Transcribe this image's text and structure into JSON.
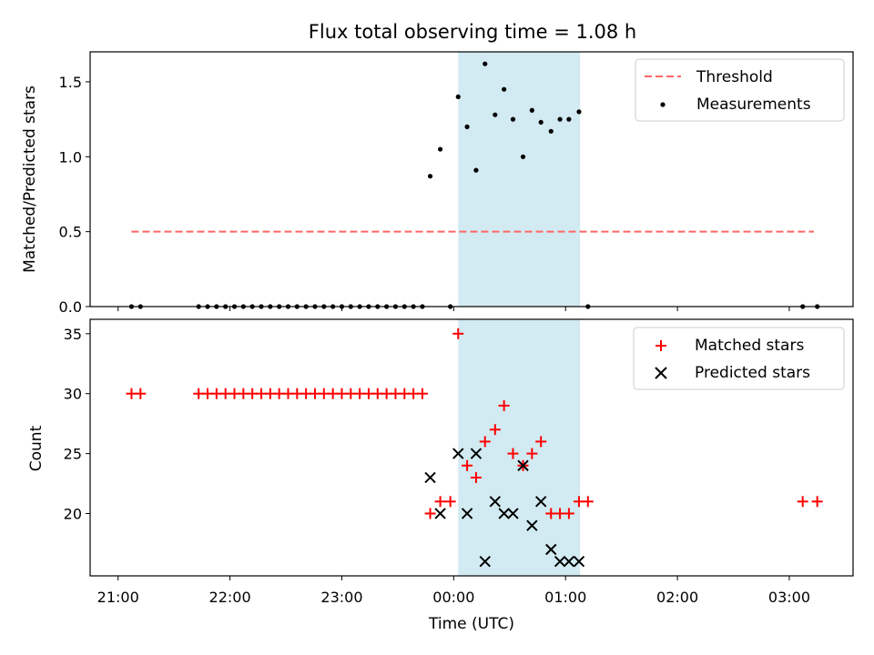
{
  "chart_data": [
    {
      "type": "scatter",
      "title": "Flux total observing time = 1.08 h",
      "ylabel": "Matched/Predicted stars",
      "xlabel": "",
      "xlim_hours": [
        20.75,
        27.57
      ],
      "ylim": [
        0,
        1.7
      ],
      "yticks": [
        0.0,
        0.5,
        1.0,
        1.5
      ],
      "ytick_labels": [
        "0.0",
        "0.5",
        "1.0",
        "1.5"
      ],
      "shaded_interval_hours": [
        24.04,
        25.13
      ],
      "shaded_color": "#add8e6",
      "threshold": {
        "name": "Threshold",
        "y": 0.5,
        "x": [
          21.12,
          27.22
        ],
        "color": "#ff6666"
      },
      "series": [
        {
          "name": "Measurements",
          "color": "#000000",
          "points": [
            [
              21.12,
              0
            ],
            [
              21.2,
              0
            ],
            [
              21.72,
              0
            ],
            [
              21.8,
              0
            ],
            [
              21.88,
              0
            ],
            [
              21.96,
              0
            ],
            [
              22.04,
              0
            ],
            [
              22.12,
              0
            ],
            [
              22.2,
              0
            ],
            [
              22.28,
              0
            ],
            [
              22.36,
              0
            ],
            [
              22.44,
              0
            ],
            [
              22.52,
              0
            ],
            [
              22.6,
              0
            ],
            [
              22.68,
              0
            ],
            [
              22.76,
              0
            ],
            [
              22.84,
              0
            ],
            [
              22.92,
              0
            ],
            [
              23.0,
              0
            ],
            [
              23.08,
              0
            ],
            [
              23.16,
              0
            ],
            [
              23.24,
              0
            ],
            [
              23.32,
              0
            ],
            [
              23.4,
              0
            ],
            [
              23.48,
              0
            ],
            [
              23.56,
              0
            ],
            [
              23.64,
              0
            ],
            [
              23.72,
              0
            ],
            [
              23.79,
              0.87
            ],
            [
              23.88,
              1.05
            ],
            [
              23.97,
              0
            ],
            [
              24.04,
              1.4
            ],
            [
              24.12,
              1.2
            ],
            [
              24.2,
              0.91
            ],
            [
              24.28,
              1.62
            ],
            [
              24.37,
              1.28
            ],
            [
              24.45,
              1.45
            ],
            [
              24.53,
              1.25
            ],
            [
              24.62,
              1.0
            ],
            [
              24.7,
              1.31
            ],
            [
              24.78,
              1.23
            ],
            [
              24.87,
              1.17
            ],
            [
              24.95,
              1.25
            ],
            [
              25.03,
              1.25
            ],
            [
              25.12,
              1.3
            ],
            [
              25.2,
              0
            ],
            [
              27.12,
              0
            ],
            [
              27.25,
              0
            ]
          ]
        }
      ]
    },
    {
      "type": "scatter",
      "title": "",
      "xlabel": "Time (UTC)",
      "ylabel": "Count",
      "xlim_hours": [
        20.75,
        27.57
      ],
      "ylim": [
        14.8,
        36.2
      ],
      "yticks": [
        20,
        25,
        30,
        35
      ],
      "ytick_labels": [
        "20",
        "25",
        "30",
        "35"
      ],
      "xticks_hours": [
        21,
        22,
        23,
        24,
        25,
        26,
        27
      ],
      "xtick_labels": [
        "21:00",
        "22:00",
        "23:00",
        "00:00",
        "01:00",
        "02:00",
        "03:00"
      ],
      "shaded_interval_hours": [
        24.04,
        25.13
      ],
      "shaded_color": "#add8e6",
      "series": [
        {
          "name": "Matched stars",
          "marker": "+",
          "color": "#ff0000",
          "points": [
            [
              21.12,
              30
            ],
            [
              21.2,
              30
            ],
            [
              21.72,
              30
            ],
            [
              21.8,
              30
            ],
            [
              21.88,
              30
            ],
            [
              21.96,
              30
            ],
            [
              22.04,
              30
            ],
            [
              22.12,
              30
            ],
            [
              22.2,
              30
            ],
            [
              22.28,
              30
            ],
            [
              22.36,
              30
            ],
            [
              22.44,
              30
            ],
            [
              22.52,
              30
            ],
            [
              22.6,
              30
            ],
            [
              22.68,
              30
            ],
            [
              22.76,
              30
            ],
            [
              22.84,
              30
            ],
            [
              22.92,
              30
            ],
            [
              23.0,
              30
            ],
            [
              23.08,
              30
            ],
            [
              23.16,
              30
            ],
            [
              23.24,
              30
            ],
            [
              23.32,
              30
            ],
            [
              23.4,
              30
            ],
            [
              23.48,
              30
            ],
            [
              23.56,
              30
            ],
            [
              23.64,
              30
            ],
            [
              23.72,
              30
            ],
            [
              23.79,
              20
            ],
            [
              23.88,
              21
            ],
            [
              23.97,
              21
            ],
            [
              24.04,
              35
            ],
            [
              24.12,
              24
            ],
            [
              24.2,
              23
            ],
            [
              24.28,
              26
            ],
            [
              24.37,
              27
            ],
            [
              24.45,
              29
            ],
            [
              24.53,
              25
            ],
            [
              24.62,
              24
            ],
            [
              24.7,
              25
            ],
            [
              24.78,
              26
            ],
            [
              24.87,
              20
            ],
            [
              24.95,
              20
            ],
            [
              25.03,
              20
            ],
            [
              25.12,
              21
            ],
            [
              25.2,
              21
            ],
            [
              27.12,
              21
            ],
            [
              27.25,
              21
            ]
          ]
        },
        {
          "name": "Predicted stars",
          "marker": "x",
          "color": "#000000",
          "points": [
            [
              23.79,
              23
            ],
            [
              23.88,
              20
            ],
            [
              24.04,
              25
            ],
            [
              24.12,
              20
            ],
            [
              24.2,
              25
            ],
            [
              24.28,
              16
            ],
            [
              24.37,
              21
            ],
            [
              24.45,
              20
            ],
            [
              24.53,
              20
            ],
            [
              24.62,
              24
            ],
            [
              24.7,
              19
            ],
            [
              24.78,
              21
            ],
            [
              24.87,
              17
            ],
            [
              24.95,
              16
            ],
            [
              25.03,
              16
            ],
            [
              25.12,
              16
            ]
          ]
        }
      ]
    }
  ]
}
